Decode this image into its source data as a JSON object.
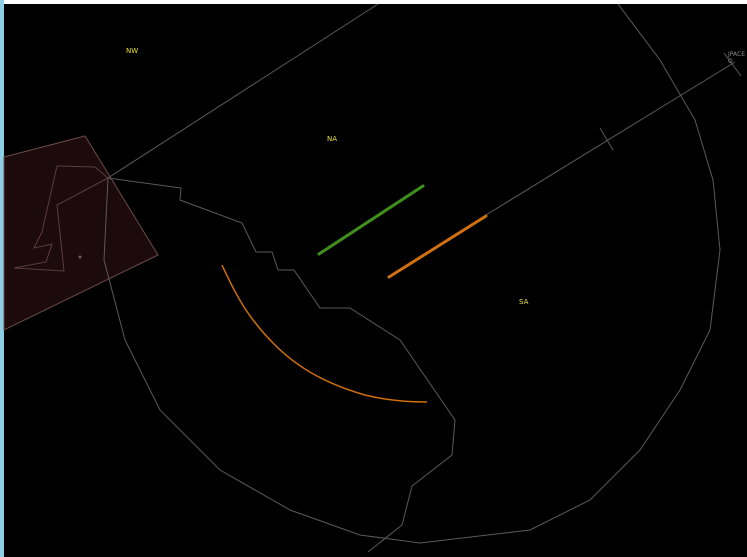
{
  "sectors": {
    "nw_label": "NW",
    "na_label": "NA",
    "sa_label": "SA"
  },
  "fix": {
    "label": "JPACE",
    "sublabel": "O"
  },
  "colors": {
    "background": "#000000",
    "boundary_line": "#5a5a5a",
    "restricted_area_fill": "#1c0a0c",
    "restricted_area_stroke": "#6a4a4a",
    "green_track": "#3f8f1c",
    "orange_track": "#d0700e",
    "sector_label": "#e7e03a"
  }
}
